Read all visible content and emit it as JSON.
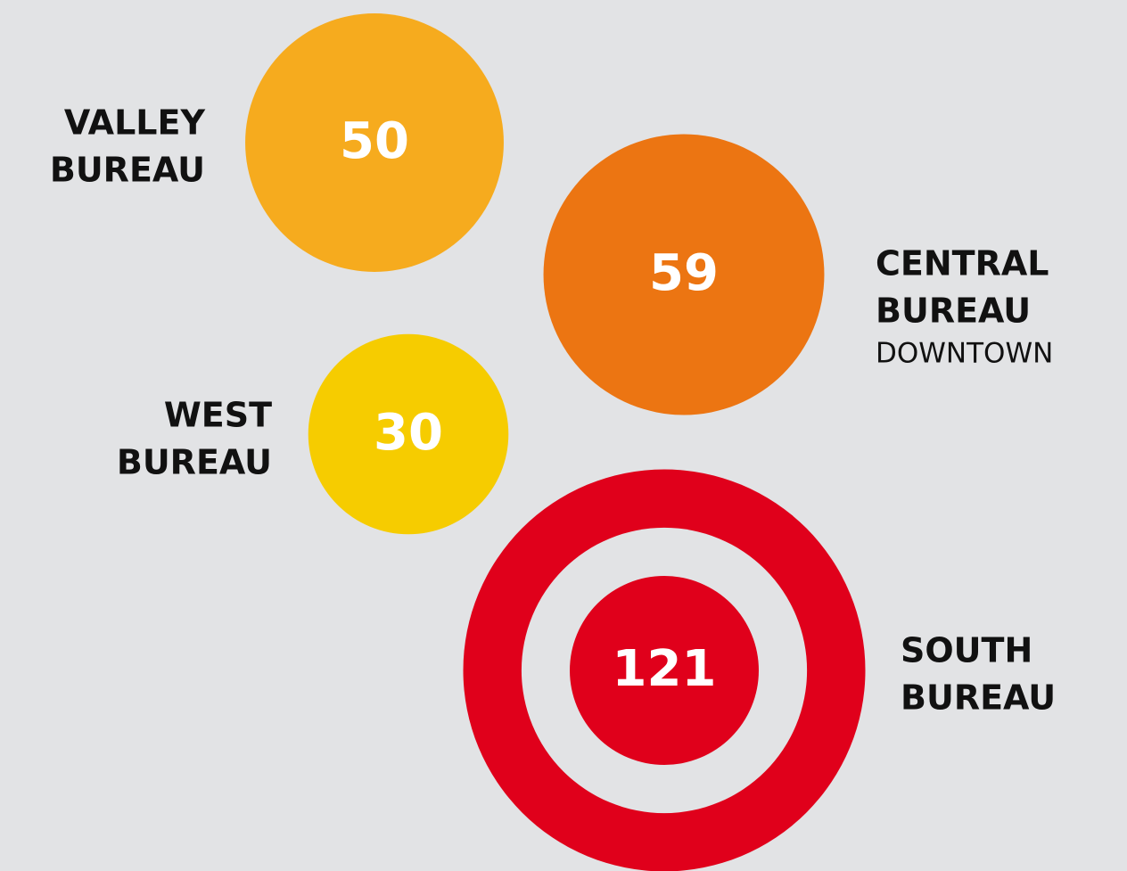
{
  "chart_data": {
    "type": "bubble",
    "categories": [
      [
        "VALLEY",
        "BUREAU"
      ],
      [
        "CENTRAL",
        "BUREAU"
      ],
      [
        "WEST",
        "BUREAU"
      ],
      [
        "SOUTH",
        "BUREAU"
      ]
    ],
    "annotations": [
      null,
      "DOWNTOWN",
      null,
      null
    ],
    "values": [
      50,
      59,
      30,
      121
    ],
    "colors": [
      "#f6ab1e",
      "#ec7512",
      "#f6cc00",
      "#e0001b"
    ]
  }
}
